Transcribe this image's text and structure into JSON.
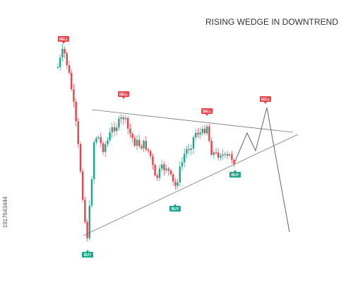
{
  "title": "RISING WEDGE IN DOWNTREND",
  "signals": [
    {
      "label": "SELL"
    },
    {
      "label": "SELL"
    },
    {
      "label": "SELL"
    },
    {
      "label": "SELL"
    },
    {
      "label": "BUY"
    },
    {
      "label": "BUY"
    },
    {
      "label": "BUY"
    }
  ],
  "stock_id": "1917643444"
}
